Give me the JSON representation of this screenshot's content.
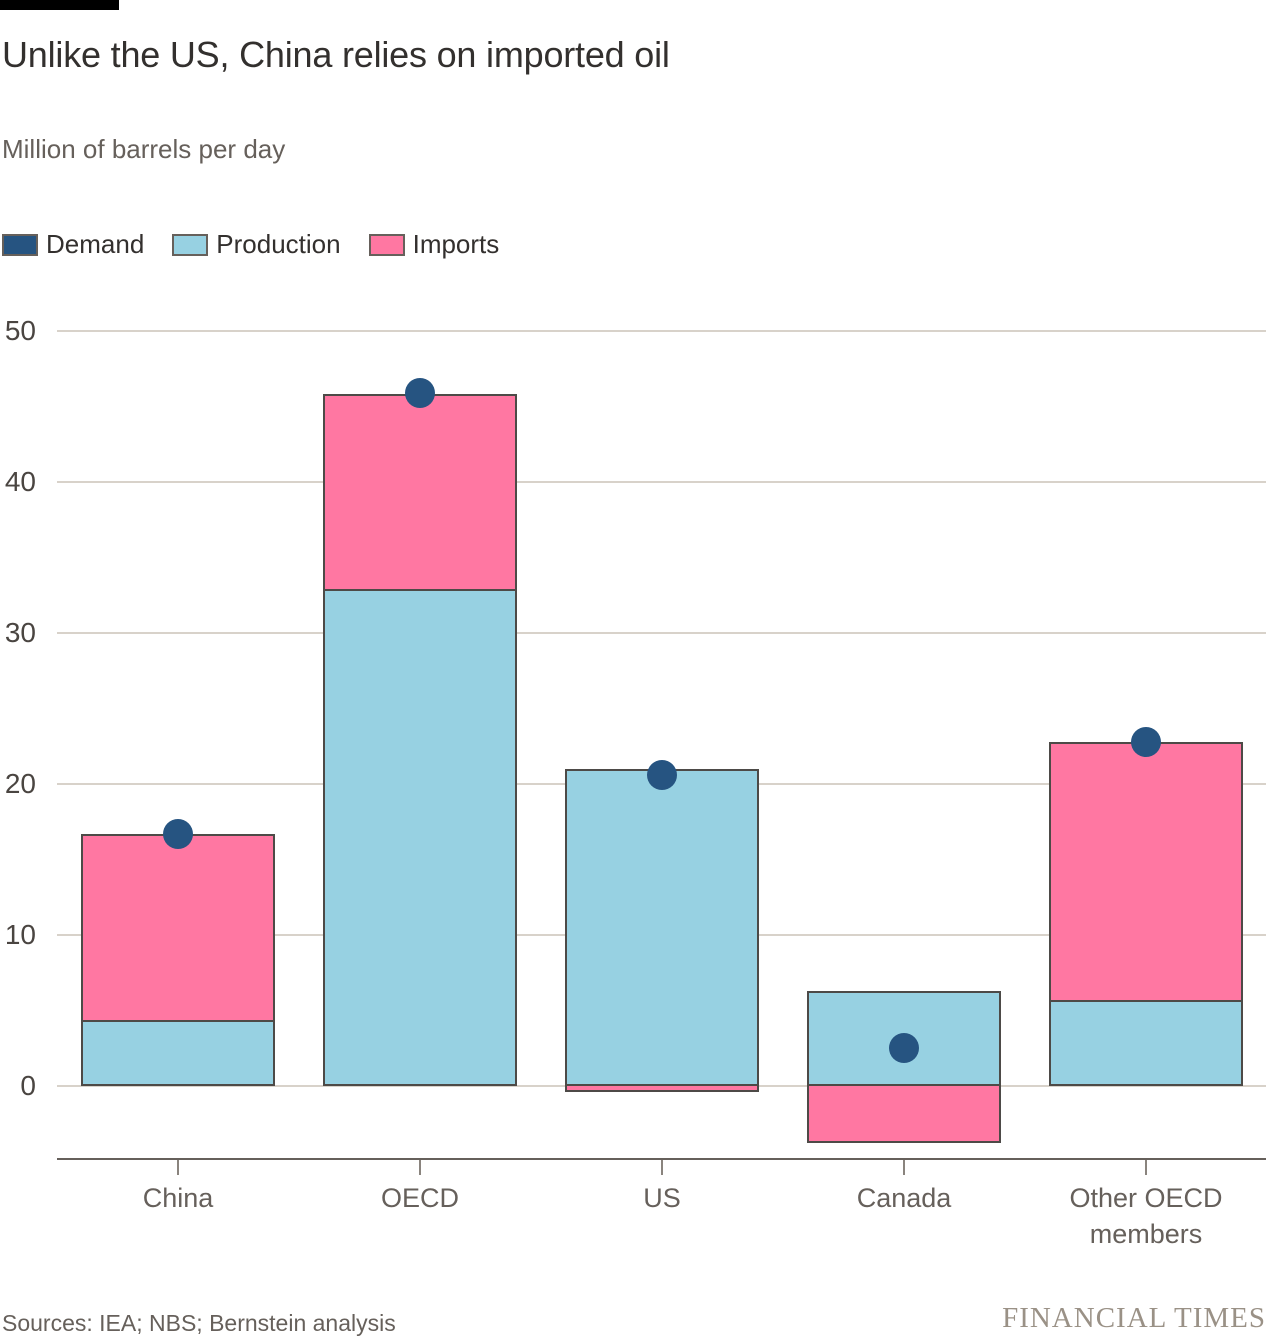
{
  "header": {
    "title": "Unlike the US, China relies on imported oil",
    "subtitle": "Million of barrels per day"
  },
  "legend": [
    {
      "label": "Demand",
      "color": "#265481",
      "marker": "rect"
    },
    {
      "label": "Production",
      "color": "#97d1e2",
      "marker": "rect"
    },
    {
      "label": "Imports",
      "color": "#ff77a2",
      "marker": "rect"
    }
  ],
  "chart_data": {
    "type": "bar",
    "subtype": "stacked-bars-with-demand-dots",
    "title": "Unlike the US, China relies on imported oil",
    "subtitle": "Million of barrels per day",
    "categories": [
      "China",
      "OECD",
      "US",
      "Canada",
      "Other OECD\nmembers"
    ],
    "series": [
      {
        "name": "Demand",
        "type": "scatter",
        "color": "#265481",
        "values": [
          16.7,
          45.9,
          20.6,
          2.5,
          22.8
        ]
      },
      {
        "name": "Production",
        "type": "bar",
        "color": "#97d1e2",
        "values": [
          4.4,
          32.9,
          21.0,
          6.3,
          5.7
        ]
      },
      {
        "name": "Imports",
        "type": "bar",
        "color": "#ff77a2",
        "values": [
          12.3,
          12.9,
          -0.4,
          -3.8,
          17.1
        ]
      }
    ],
    "stack_order": [
      "Production",
      "Imports"
    ],
    "xlabel": "",
    "ylabel": "Million of barrels per day",
    "yticks": [
      0,
      10,
      20,
      30,
      40,
      50
    ],
    "ylim": [
      -5,
      52
    ],
    "grid": true,
    "legend_position": "top-left"
  },
  "colors": {
    "background": "#ffffff",
    "grid": "#d8d2ca",
    "axis": "#66605b",
    "bar_border": "#4d4a47",
    "title_text": "#33302e",
    "muted_text": "#66605b",
    "brand_text": "#9a9186"
  },
  "footer": {
    "sources": "Sources: IEA; NBS; Bernstein analysis",
    "brand": "FINANCIAL TIMES"
  }
}
